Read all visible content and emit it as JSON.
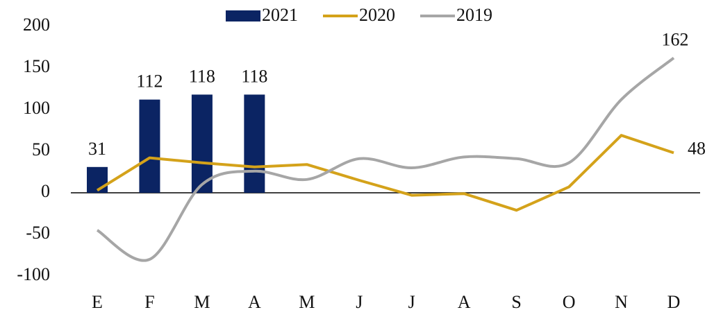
{
  "chart_data": {
    "type": "bar-line",
    "categories": [
      "E",
      "F",
      "M",
      "A",
      "M",
      "J",
      "J",
      "A",
      "S",
      "O",
      "N",
      "D"
    ],
    "series": [
      {
        "name": "2021",
        "type": "bar",
        "color": "#0b2463",
        "values": [
          31,
          112,
          118,
          118,
          null,
          null,
          null,
          null,
          null,
          null,
          null,
          null
        ],
        "labeled": [
          0,
          1,
          2,
          3
        ]
      },
      {
        "name": "2020",
        "type": "line",
        "color": "#d4a21a",
        "values": [
          3,
          42,
          36,
          31,
          34,
          15,
          -3,
          -1,
          -21,
          7,
          69,
          48
        ],
        "labeled": [
          11
        ]
      },
      {
        "name": "2019",
        "type": "line",
        "smooth": true,
        "color": "#a6a6a6",
        "values": [
          -45,
          -80,
          10,
          26,
          16,
          41,
          30,
          43,
          41,
          36,
          112,
          162
        ],
        "labeled": [
          11
        ]
      }
    ],
    "ylim": [
      -100,
      200
    ],
    "yticks": [
      -100,
      -50,
      0,
      50,
      100,
      150,
      200
    ],
    "grid": false,
    "legend": "top"
  }
}
